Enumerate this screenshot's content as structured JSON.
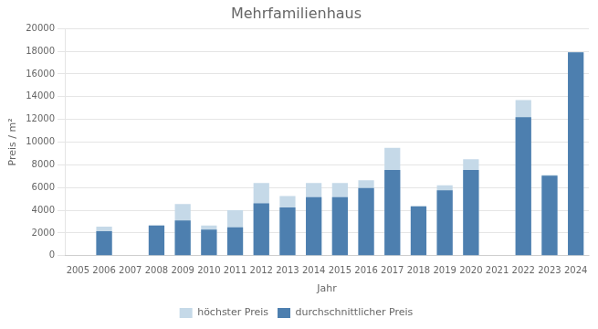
{
  "chart_data": {
    "type": "bar",
    "title": "Mehrfamilienhaus",
    "xlabel": "Jahr",
    "ylabel": "Preis / m²",
    "categories": [
      "2005",
      "2006",
      "2007",
      "2008",
      "2009",
      "2010",
      "2011",
      "2012",
      "2013",
      "2014",
      "2015",
      "2016",
      "2017",
      "2018",
      "2019",
      "2020",
      "2021",
      "2022",
      "2023",
      "2024"
    ],
    "series": [
      {
        "name": "höchster Preis",
        "color": "#c5d9e8",
        "values": [
          0,
          2550,
          0,
          2650,
          4550,
          2650,
          4000,
          6400,
          5250,
          6400,
          6400,
          6650,
          9500,
          4350,
          6200,
          8500,
          0,
          13700,
          7100,
          17900
        ]
      },
      {
        "name": "durchschnittlicher Preis",
        "color": "#4d7faf",
        "values": [
          0,
          2150,
          0,
          2650,
          3100,
          2300,
          2500,
          4600,
          4250,
          5150,
          5150,
          5950,
          7550,
          4350,
          5750,
          7550,
          0,
          12200,
          7050,
          17900
        ]
      }
    ],
    "ylim": [
      0,
      20000
    ],
    "yticks": [
      0,
      2000,
      4000,
      6000,
      8000,
      10000,
      12000,
      14000,
      16000,
      18000,
      20000
    ],
    "grid": "y",
    "legend": "bottom"
  }
}
